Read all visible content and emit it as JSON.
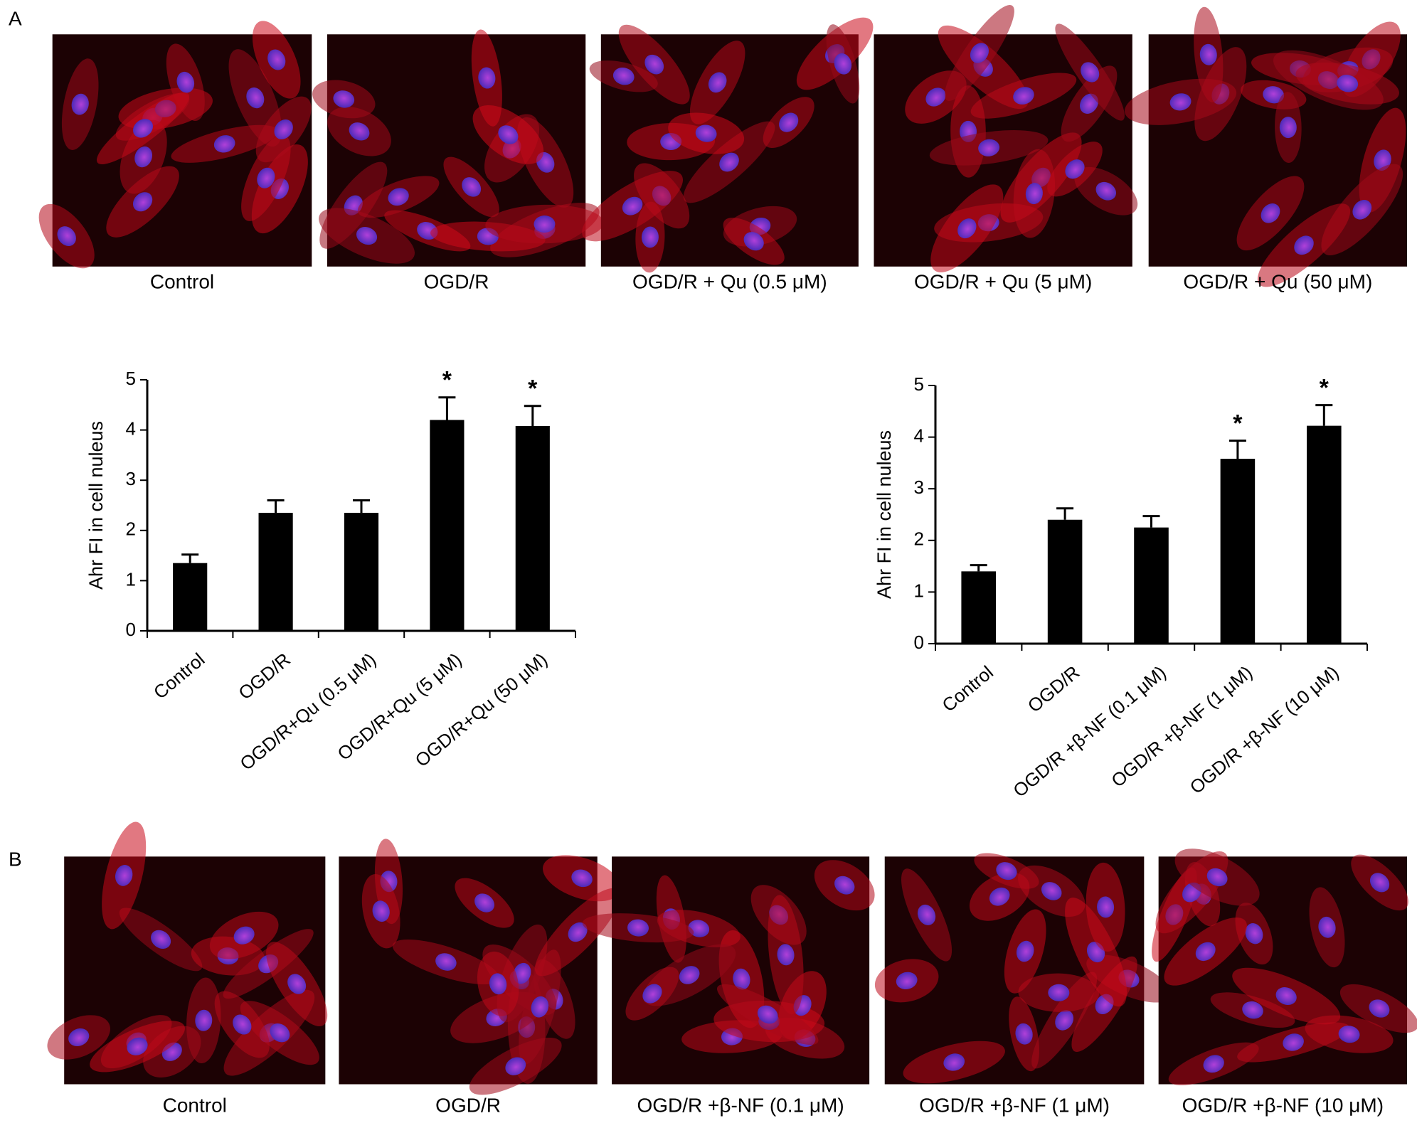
{
  "panel_a": {
    "label": "A",
    "captions": [
      "Control",
      "OGD/R",
      "OGD/R + Qu (0.5 μM)",
      "OGD/R + Qu (5 μM)",
      "OGD/R + Qu (50 μM)"
    ]
  },
  "panel_b": {
    "label": "B",
    "captions": [
      "Control",
      "OGD/R",
      "OGD/R +β-NF (0.1 μM)",
      "OGD/R +β-NF (1 μM)",
      "OGD/R +β-NF (10 μM)"
    ]
  },
  "chart_data": [
    {
      "type": "bar",
      "y_label": "Ahr FI in cell nuleus",
      "categories": [
        "Control",
        "OGD/R",
        "OGD/R+Qu (0.5 μM)",
        "OGD/R+Qu (5 μM)",
        "OGD/R+Qu (50 μM)"
      ],
      "values": [
        1.35,
        2.35,
        2.35,
        4.2,
        4.08
      ],
      "errors": [
        0.17,
        0.25,
        0.25,
        0.45,
        0.4
      ],
      "annotations": [
        null,
        null,
        null,
        "*",
        "*"
      ],
      "color": "#000000",
      "ylim": [
        0,
        5
      ],
      "yticks": [
        0,
        1,
        2,
        3,
        4,
        5
      ]
    },
    {
      "type": "bar",
      "y_label": "Ahr FI in cell nuleus",
      "categories": [
        "Control",
        "OGD/R",
        "OGD/R +β-NF (0.1 μM)",
        "OGD/R +β-NF (1 μM)",
        "OGD/R +β-NF (10 μM)"
      ],
      "values": [
        1.4,
        2.4,
        2.25,
        3.58,
        4.22
      ],
      "errors": [
        0.12,
        0.22,
        0.22,
        0.35,
        0.4
      ],
      "annotations": [
        null,
        null,
        null,
        "*",
        "*"
      ],
      "color": "#000000",
      "ylim": [
        0,
        5
      ],
      "yticks": [
        0,
        1,
        2,
        3,
        4,
        5
      ]
    }
  ]
}
